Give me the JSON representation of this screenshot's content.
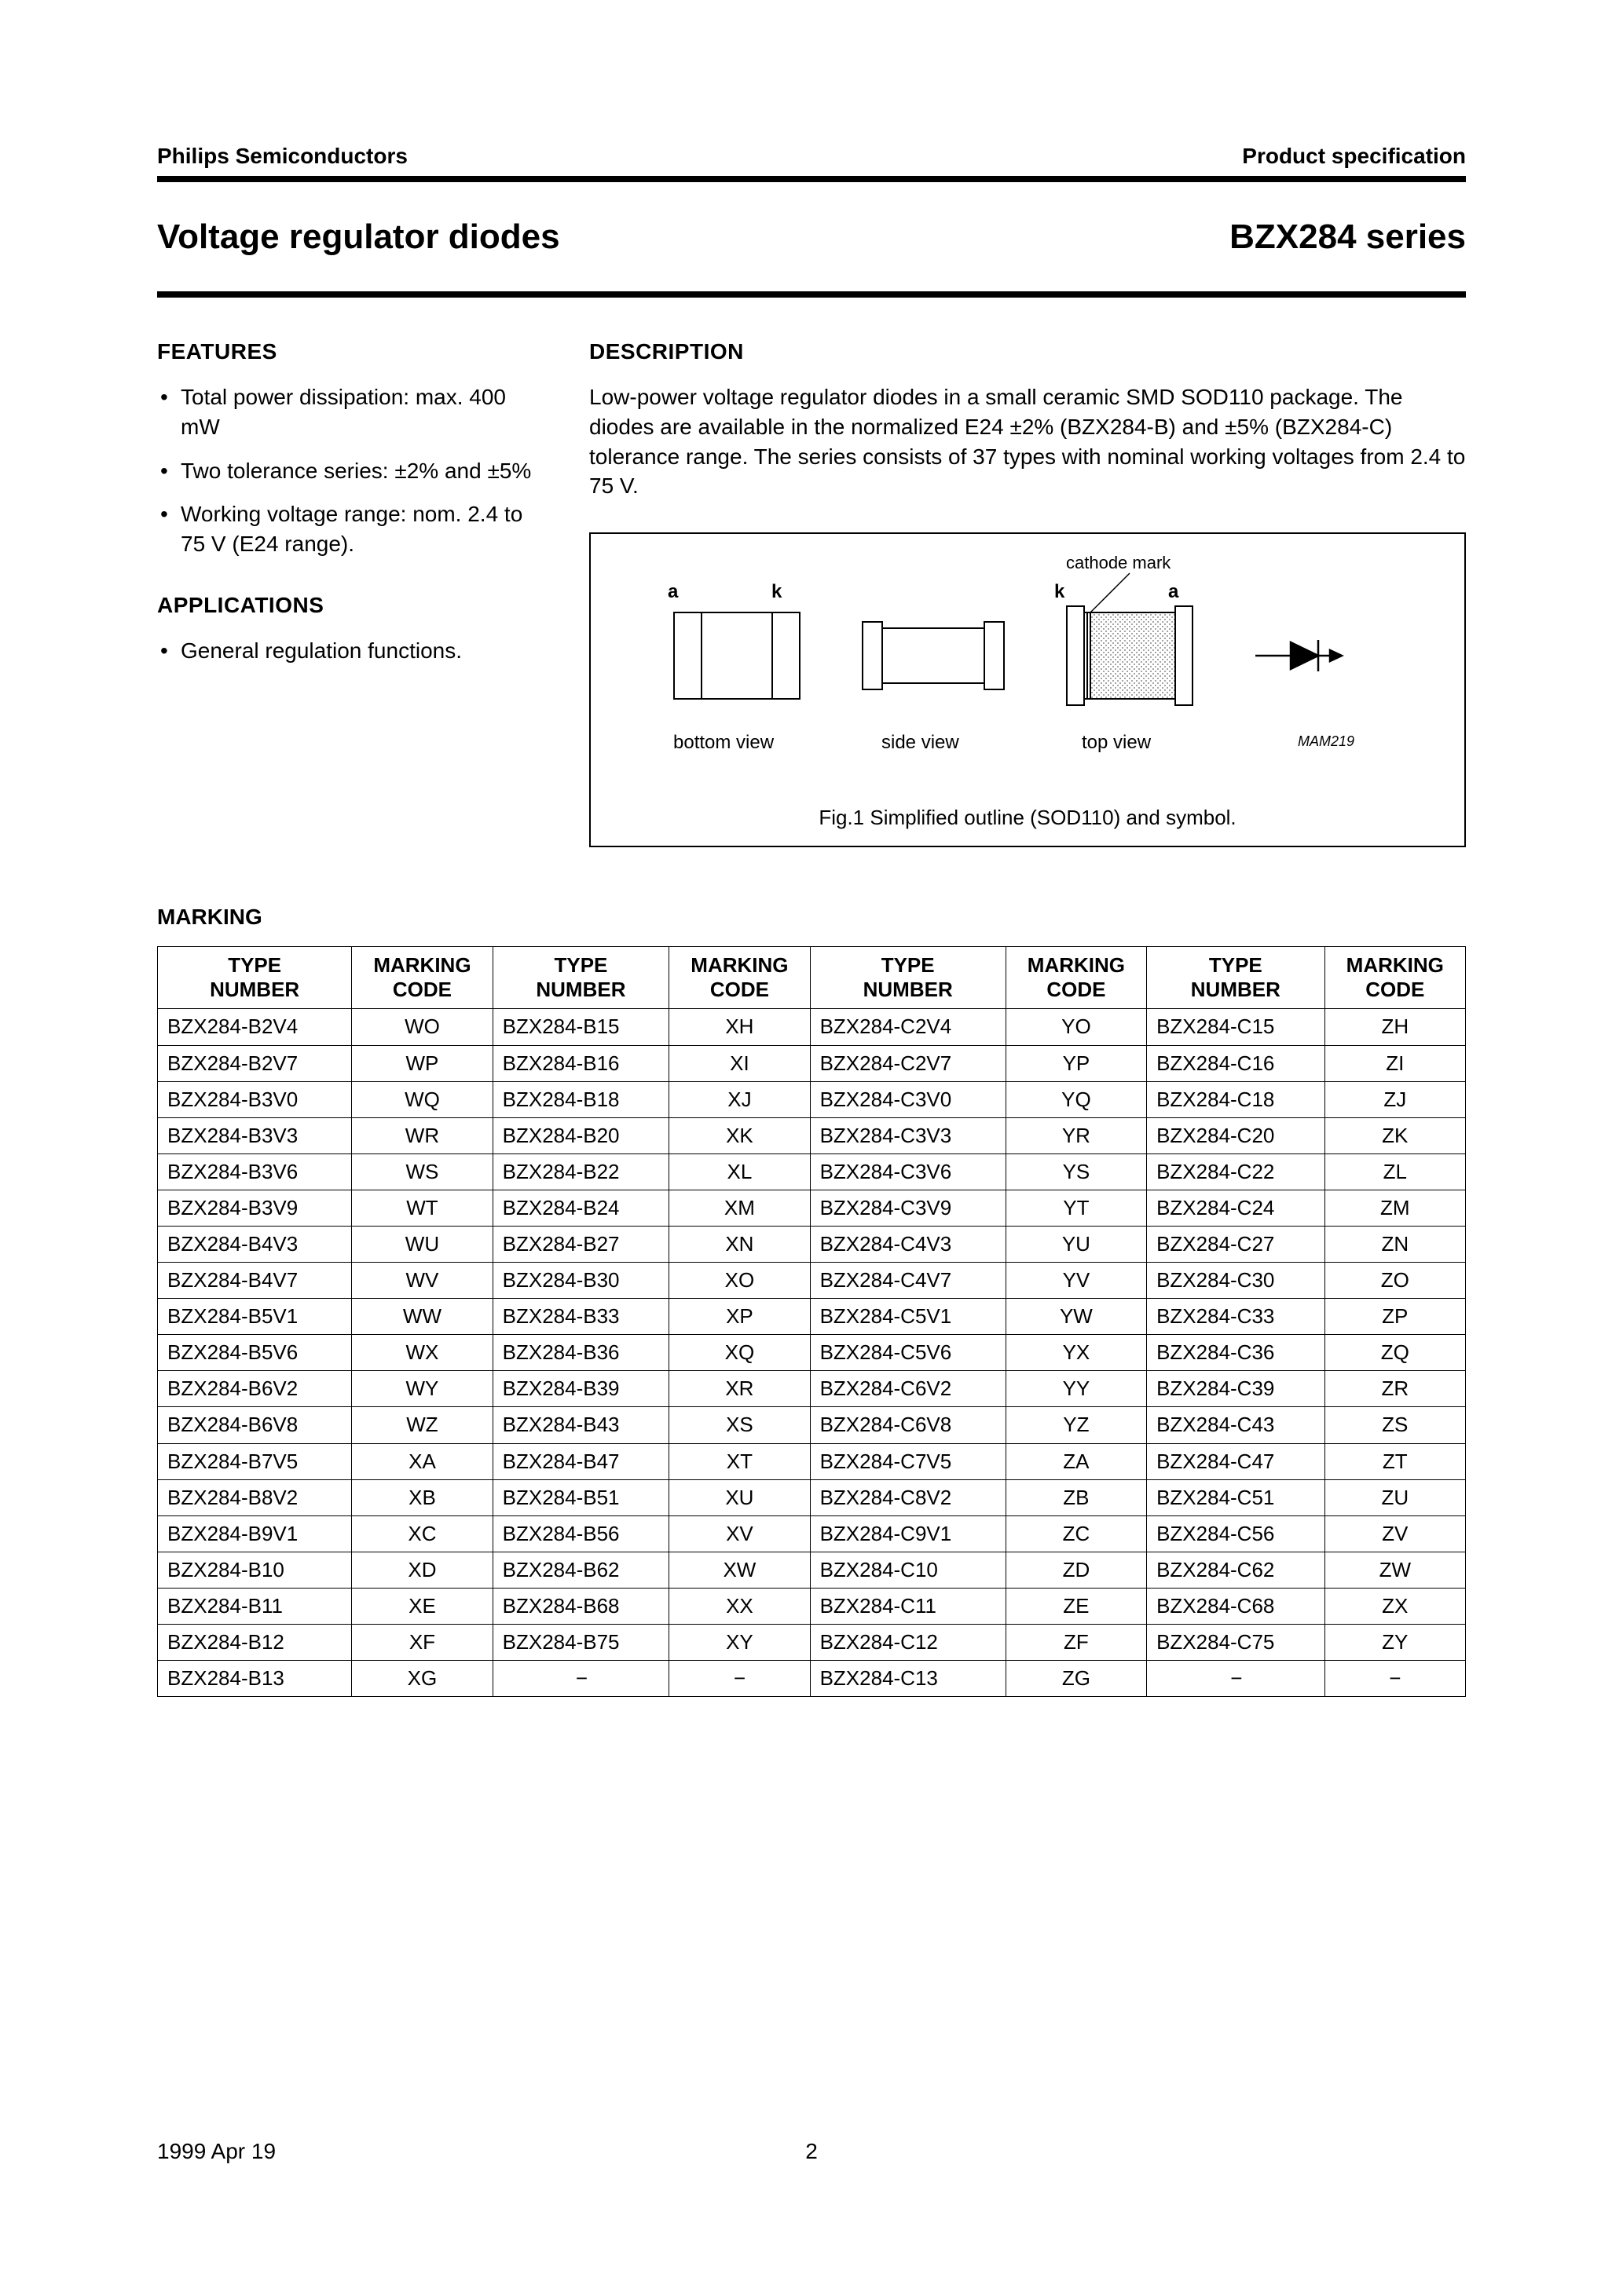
{
  "header": {
    "left": "Philips Semiconductors",
    "right": "Product specification"
  },
  "title": {
    "left": "Voltage regulator diodes",
    "right": "BZX284 series"
  },
  "features": {
    "heading": "FEATURES",
    "items": [
      "Total power dissipation: max. 400 mW",
      "Two tolerance series: ±2% and ±5%",
      "Working voltage range: nom. 2.4 to 75 V (E24 range)."
    ]
  },
  "applications": {
    "heading": "APPLICATIONS",
    "items": [
      "General regulation functions."
    ]
  },
  "description": {
    "heading": "DESCRIPTION",
    "text": "Low-power voltage regulator diodes in a small ceramic SMD SOD110 package. The diodes are available in the normalized E24 ±2% (BZX284-B) and ±5% (BZX284-C) tolerance range. The series consists of 37 types with nominal working voltages from 2.4 to 75 V."
  },
  "figure": {
    "labels": {
      "a1": "a",
      "k1": "k",
      "k2": "k",
      "a2": "a",
      "cathode": "cathode mark",
      "bottom": "bottom view",
      "side": "side view",
      "top": "top view",
      "mam": "MAM219"
    },
    "caption": "Fig.1  Simplified outline (SOD110) and symbol.",
    "colors": {
      "stroke": "#000000",
      "hatch": "#9a9a9a"
    }
  },
  "marking": {
    "heading": "MARKING",
    "headers": {
      "type": "TYPE NUMBER",
      "code": "MARKING CODE"
    },
    "rows": [
      [
        "BZX284-B2V4",
        "WO",
        "BZX284-B15",
        "XH",
        "BZX284-C2V4",
        "YO",
        "BZX284-C15",
        "ZH"
      ],
      [
        "BZX284-B2V7",
        "WP",
        "BZX284-B16",
        "XI",
        "BZX284-C2V7",
        "YP",
        "BZX284-C16",
        "ZI"
      ],
      [
        "BZX284-B3V0",
        "WQ",
        "BZX284-B18",
        "XJ",
        "BZX284-C3V0",
        "YQ",
        "BZX284-C18",
        "ZJ"
      ],
      [
        "BZX284-B3V3",
        "WR",
        "BZX284-B20",
        "XK",
        "BZX284-C3V3",
        "YR",
        "BZX284-C20",
        "ZK"
      ],
      [
        "BZX284-B3V6",
        "WS",
        "BZX284-B22",
        "XL",
        "BZX284-C3V6",
        "YS",
        "BZX284-C22",
        "ZL"
      ],
      [
        "BZX284-B3V9",
        "WT",
        "BZX284-B24",
        "XM",
        "BZX284-C3V9",
        "YT",
        "BZX284-C24",
        "ZM"
      ],
      [
        "BZX284-B4V3",
        "WU",
        "BZX284-B27",
        "XN",
        "BZX284-C4V3",
        "YU",
        "BZX284-C27",
        "ZN"
      ],
      [
        "BZX284-B4V7",
        "WV",
        "BZX284-B30",
        "XO",
        "BZX284-C4V7",
        "YV",
        "BZX284-C30",
        "ZO"
      ],
      [
        "BZX284-B5V1",
        "WW",
        "BZX284-B33",
        "XP",
        "BZX284-C5V1",
        "YW",
        "BZX284-C33",
        "ZP"
      ],
      [
        "BZX284-B5V6",
        "WX",
        "BZX284-B36",
        "XQ",
        "BZX284-C5V6",
        "YX",
        "BZX284-C36",
        "ZQ"
      ],
      [
        "BZX284-B6V2",
        "WY",
        "BZX284-B39",
        "XR",
        "BZX284-C6V2",
        "YY",
        "BZX284-C39",
        "ZR"
      ],
      [
        "BZX284-B6V8",
        "WZ",
        "BZX284-B43",
        "XS",
        "BZX284-C6V8",
        "YZ",
        "BZX284-C43",
        "ZS"
      ],
      [
        "BZX284-B7V5",
        "XA",
        "BZX284-B47",
        "XT",
        "BZX284-C7V5",
        "ZA",
        "BZX284-C47",
        "ZT"
      ],
      [
        "BZX284-B8V2",
        "XB",
        "BZX284-B51",
        "XU",
        "BZX284-C8V2",
        "ZB",
        "BZX284-C51",
        "ZU"
      ],
      [
        "BZX284-B9V1",
        "XC",
        "BZX284-B56",
        "XV",
        "BZX284-C9V1",
        "ZC",
        "BZX284-C56",
        "ZV"
      ],
      [
        "BZX284-B10",
        "XD",
        "BZX284-B62",
        "XW",
        "BZX284-C10",
        "ZD",
        "BZX284-C62",
        "ZW"
      ],
      [
        "BZX284-B11",
        "XE",
        "BZX284-B68",
        "XX",
        "BZX284-C11",
        "ZE",
        "BZX284-C68",
        "ZX"
      ],
      [
        "BZX284-B12",
        "XF",
        "BZX284-B75",
        "XY",
        "BZX284-C12",
        "ZF",
        "BZX284-C75",
        "ZY"
      ],
      [
        "BZX284-B13",
        "XG",
        "−",
        "−",
        "BZX284-C13",
        "ZG",
        "−",
        "−"
      ]
    ]
  },
  "footer": {
    "date": "1999 Apr 19",
    "page": "2"
  }
}
